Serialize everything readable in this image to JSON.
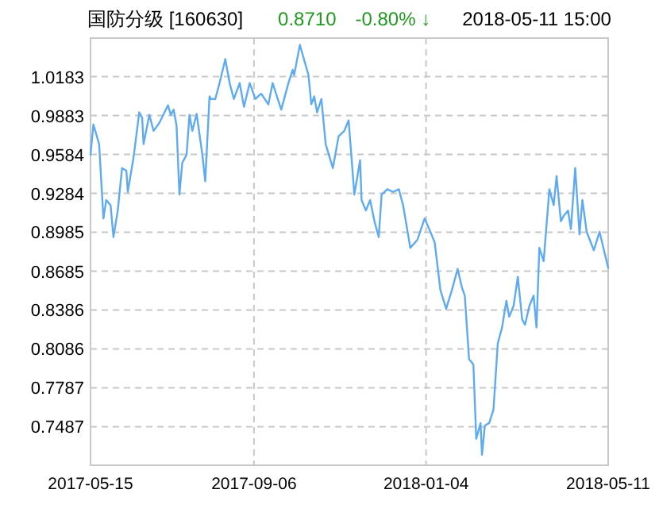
{
  "chart_data": {
    "type": "line",
    "title": "国防分级 [160630]",
    "annotations": [
      "0.8710",
      "-0.80% ↓",
      "2018-05-11 15:00"
    ],
    "xlim": [
      "2017-05-15",
      "2018-05-11"
    ],
    "xticks": [
      "2017-05-15",
      "2017-09-06",
      "2018-01-04",
      "2018-05-11"
    ],
    "ylim": [
      0.719,
      1.048
    ],
    "yticks": [
      0.7487,
      0.7787,
      0.8086,
      0.8386,
      0.8685,
      0.8985,
      0.9284,
      0.9584,
      0.9883,
      1.0183
    ],
    "grid": true,
    "marker": "none",
    "line_style": "solid",
    "series": [
      {
        "color": "#5fabf2",
        "x": [
          "2017-05-15",
          "2017-05-17",
          "2017-05-21",
          "2017-05-24",
          "2017-05-26",
          "2017-05-29",
          "2017-05-31",
          "2017-06-03",
          "2017-06-06",
          "2017-06-09",
          "2017-06-10",
          "2017-06-14",
          "2017-06-18",
          "2017-06-20",
          "2017-06-21",
          "2017-06-25",
          "2017-06-28",
          "2017-07-02",
          "2017-07-08",
          "2017-07-10",
          "2017-07-12",
          "2017-07-14",
          "2017-07-16",
          "2017-07-18",
          "2017-07-21",
          "2017-07-23",
          "2017-07-25",
          "2017-07-28",
          "2017-08-01",
          "2017-08-03",
          "2017-08-06",
          "2017-08-07",
          "2017-08-10",
          "2017-08-13",
          "2017-08-17",
          "2017-08-20",
          "2017-08-23",
          "2017-08-27",
          "2017-08-30",
          "2017-09-03",
          "2017-09-07",
          "2017-09-11",
          "2017-09-16",
          "2017-09-19",
          "2017-09-25",
          "2017-09-30",
          "2017-10-03",
          "2017-10-04",
          "2017-10-08",
          "2017-10-14",
          "2017-10-16",
          "2017-10-18",
          "2017-10-20",
          "2017-10-23",
          "2017-10-26",
          "2017-10-31",
          "2017-11-04",
          "2017-11-08",
          "2017-11-11",
          "2017-11-15",
          "2017-11-19",
          "2017-11-20",
          "2017-11-23",
          "2017-11-26",
          "2017-11-29",
          "2017-12-02",
          "2017-12-04",
          "2017-12-08",
          "2017-12-12",
          "2017-12-16",
          "2017-12-19",
          "2017-12-24",
          "2017-12-29",
          "2018-01-03",
          "2018-01-07",
          "2018-01-10",
          "2018-01-14",
          "2018-01-18",
          "2018-01-22",
          "2018-01-26",
          "2018-01-29",
          "2018-01-31",
          "2018-02-03",
          "2018-02-06",
          "2018-02-08",
          "2018-02-11",
          "2018-02-12",
          "2018-02-14",
          "2018-02-17",
          "2018-02-20",
          "2018-02-23",
          "2018-02-26",
          "2018-03-01",
          "2018-03-03",
          "2018-03-06",
          "2018-03-09",
          "2018-03-12",
          "2018-03-14",
          "2018-03-17",
          "2018-03-20",
          "2018-03-22",
          "2018-03-24",
          "2018-03-27",
          "2018-03-31",
          "2018-04-03",
          "2018-04-05",
          "2018-04-08",
          "2018-04-10",
          "2018-04-13",
          "2018-04-15",
          "2018-04-18",
          "2018-04-21",
          "2018-04-23",
          "2018-04-26",
          "2018-05-01",
          "2018-05-05",
          "2018-05-11"
        ],
        "values": [
          0.9582,
          0.9815,
          0.9663,
          0.9091,
          0.9233,
          0.9193,
          0.8947,
          0.9152,
          0.9479,
          0.9459,
          0.9295,
          0.9561,
          0.9908,
          0.9868,
          0.9663,
          0.9889,
          0.9766,
          0.9827,
          0.9962,
          0.9889,
          0.9929,
          0.9806,
          0.9275,
          0.952,
          0.9582,
          0.9889,
          0.9766,
          0.9896,
          0.9582,
          0.9377,
          1.0031,
          1.0011,
          1.0011,
          1.0134,
          1.0318,
          1.0134,
          1.0011,
          1.0134,
          0.995,
          1.0134,
          1.0011,
          1.0052,
          0.997,
          1.0134,
          0.9929,
          1.0134,
          1.0236,
          1.0195,
          1.0428,
          1.0195,
          0.997,
          1.0031,
          0.9908,
          1.0011,
          0.9663,
          0.9479,
          0.9724,
          0.9766,
          0.9847,
          0.9275,
          0.954,
          0.9233,
          0.9152,
          0.9233,
          0.907,
          0.8947,
          0.9275,
          0.9316,
          0.9295,
          0.9316,
          0.9193,
          0.8865,
          0.8927,
          0.9091,
          0.8988,
          0.8907,
          0.8539,
          0.8395,
          0.8539,
          0.8702,
          0.8559,
          0.8497,
          0.8006,
          0.7966,
          0.7393,
          0.7515,
          0.727,
          0.7496,
          0.7515,
          0.7619,
          0.8129,
          0.8252,
          0.8457,
          0.8334,
          0.8416,
          0.8641,
          0.8313,
          0.8273,
          0.8416,
          0.8497,
          0.8252,
          0.8865,
          0.8763,
          0.9316,
          0.9193,
          0.9417,
          0.907,
          0.9111,
          0.9152,
          0.9009,
          0.9479,
          0.8968,
          0.9233,
          0.8988,
          0.8846,
          0.8988,
          0.871
        ]
      }
    ]
  }
}
